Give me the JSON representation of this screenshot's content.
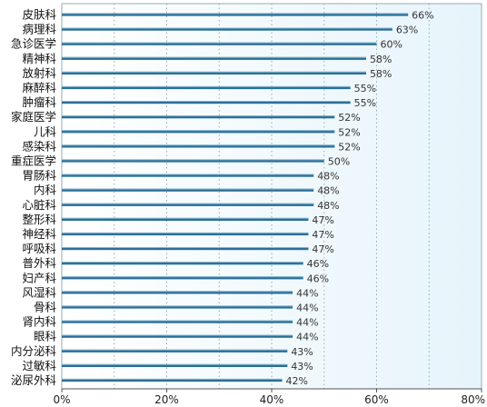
{
  "chart_data": {
    "type": "bar",
    "orientation": "horizontal",
    "categories": [
      "皮肤科",
      "病理科",
      "急诊医学",
      "精神科",
      "放射科",
      "麻醉科",
      "肿瘤科",
      "家庭医学",
      "儿科",
      "感染科",
      "重症医学",
      "胃肠科",
      "内科",
      "心脏科",
      "整形科",
      "神经科",
      "呼吸科",
      "普外科",
      "妇产科",
      "风湿科",
      "骨科",
      "肾内科",
      "眼科",
      "内分泌科",
      "过敏科",
      "泌尿外科"
    ],
    "values": [
      66,
      63,
      60,
      58,
      58,
      55,
      55,
      52,
      52,
      52,
      50,
      48,
      48,
      48,
      47,
      47,
      47,
      46,
      46,
      44,
      44,
      44,
      44,
      43,
      43,
      42
    ],
    "value_labels": [
      "66%",
      "63%",
      "60%",
      "58%",
      "58%",
      "55%",
      "55%",
      "52%",
      "52%",
      "52%",
      "50%",
      "48%",
      "48%",
      "48%",
      "47%",
      "47%",
      "47%",
      "46%",
      "46%",
      "44%",
      "44%",
      "44%",
      "44%",
      "43%",
      "43%",
      "42%"
    ],
    "xlim": [
      0,
      80
    ],
    "xticks": [
      0,
      20,
      40,
      60,
      80
    ],
    "xtick_labels": [
      "0%",
      "20%",
      "40%",
      "60%",
      "80%"
    ],
    "grid": true,
    "colors": {
      "bar": "#2a6f97",
      "bar_highlight": "#bfe3f5",
      "plot_bg": "#ffffff",
      "plot_bg_right": "#eaf6fc",
      "grid": "#9aaab4",
      "axis": "#555555"
    }
  }
}
